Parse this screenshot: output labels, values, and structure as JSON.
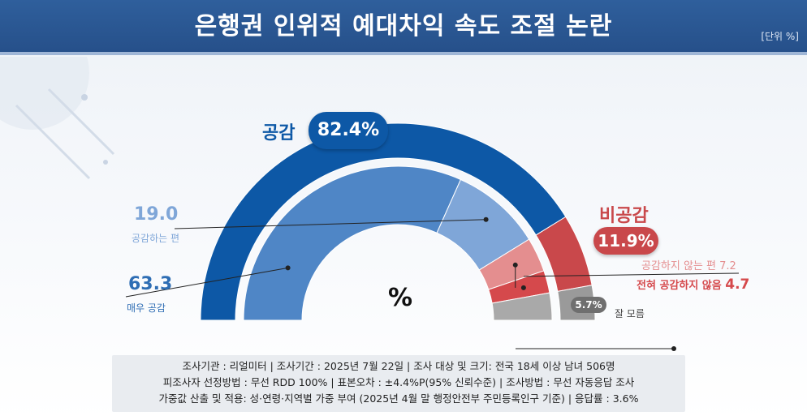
{
  "header": {
    "title": "은행권 인위적 예대차익 속도 조절 논란",
    "unit": "[단위 %]"
  },
  "chart_data": {
    "type": "pie",
    "style": "half-donut",
    "center_label": "%",
    "groups": [
      {
        "name": "공감",
        "value": 82.4,
        "label": "82.4%",
        "color": "#0d58a6"
      },
      {
        "name": "비공감",
        "value": 11.9,
        "label": "11.9%",
        "color": "#c9484b"
      },
      {
        "name": "잘 모름",
        "value": 5.7,
        "label": "5.7%",
        "color": "#9a9a9a"
      }
    ],
    "segments": [
      {
        "name": "매우 공감",
        "value": 63.3,
        "label": "63.3",
        "color": "#4f86c6"
      },
      {
        "name": "공감하는 편",
        "value": 19.0,
        "label": "19.0",
        "color": "#7fa6d8"
      },
      {
        "name": "공감하지 않는 편",
        "value": 7.2,
        "label": "7.2",
        "color": "#e48e8f"
      },
      {
        "name": "전혀 공감하지 않음",
        "value": 4.7,
        "label": "4.7",
        "color": "#d5494c"
      },
      {
        "name": "잘 모름",
        "value": 5.7,
        "label": "5.7%",
        "color": "#a9a9a9"
      }
    ]
  },
  "footer": {
    "line1": "조사기관 : 리얼미터  |  조사기간 : 2025년 7월 22일 | 조사 대상 및 크기: 전국 18세 이상 남녀 506명",
    "line2": "피조사자 선정방법 : 무선 RDD 100% | 표본오차 : ±4.4%P(95% 신뢰수준) | 조사방법 : 무선 자동응답 조사",
    "line3": "가중값 산출 및 적용: 성·연령·지역별 가중 부여 (2025년 4월 말 행정안전부 주민등록인구 기준) | 응답률 : 3.6%"
  }
}
